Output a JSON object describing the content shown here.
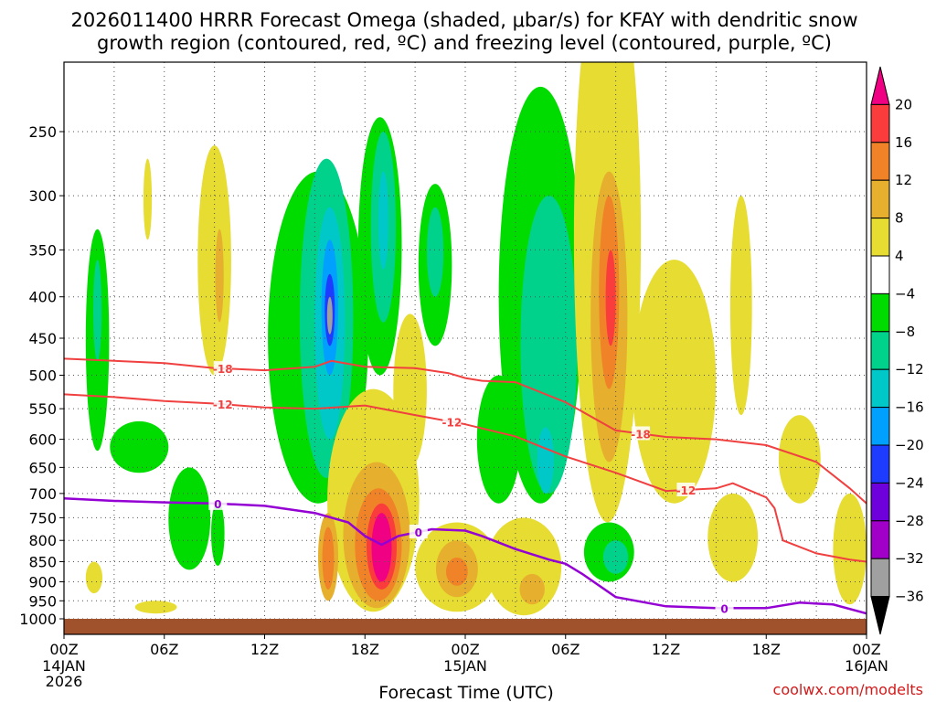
{
  "chart_data": {
    "type": "heatmap",
    "title_line1": "2026011400 HRRR Forecast Omega (shaded, μbar/s) for KFAY with dendritic snow",
    "title_line2": "growth region (contoured, red, ºC) and freezing level (contoured, purple, ºC)",
    "xlabel": "Forecast Time (UTC)",
    "credit": "coolwx.com/modelts",
    "x_range_hours": [
      0,
      48
    ],
    "x_ticks": [
      {
        "hour": 0,
        "label": "00Z",
        "sub1": "14JAN",
        "sub2": "2026"
      },
      {
        "hour": 6,
        "label": "06Z"
      },
      {
        "hour": 12,
        "label": "12Z"
      },
      {
        "hour": 18,
        "label": "18Z"
      },
      {
        "hour": 24,
        "label": "00Z",
        "sub1": "15JAN"
      },
      {
        "hour": 30,
        "label": "06Z"
      },
      {
        "hour": 36,
        "label": "12Z"
      },
      {
        "hour": 42,
        "label": "18Z"
      },
      {
        "hour": 48,
        "label": "00Z",
        "sub1": "16JAN"
      }
    ],
    "y_range_hpa": [
      1000,
      200
    ],
    "y_ticks": [
      250,
      300,
      350,
      400,
      450,
      500,
      550,
      600,
      650,
      700,
      750,
      800,
      850,
      900,
      950,
      1000
    ],
    "colorbar": {
      "levels": [
        -36,
        -32,
        -28,
        -24,
        -20,
        -16,
        -12,
        -8,
        -4,
        4,
        8,
        12,
        16,
        20
      ],
      "colors": [
        "#000000",
        "#a0a0a0",
        "#a000c8",
        "#6e00dc",
        "#1e3cff",
        "#00a0ff",
        "#00c8c8",
        "#00d28c",
        "#00dc00",
        "#ffffff",
        "#e6dc32",
        "#e6af2d",
        "#f08228",
        "#fa3c3c",
        "#f00082"
      ]
    },
    "snow_growth_contours": [
      {
        "label": "-18",
        "color": "#f04040",
        "points": [
          [
            0,
            477
          ],
          [
            3,
            480
          ],
          [
            6,
            483
          ],
          [
            9,
            490
          ],
          [
            12,
            493
          ],
          [
            15,
            488
          ],
          [
            16,
            480
          ],
          [
            18,
            488
          ],
          [
            21,
            490
          ],
          [
            23,
            497
          ],
          [
            24,
            504
          ],
          [
            25,
            508
          ],
          [
            27,
            510
          ],
          [
            30,
            540
          ],
          [
            33,
            585
          ],
          [
            36,
            596
          ],
          [
            39,
            600
          ],
          [
            42,
            610
          ],
          [
            45,
            640
          ],
          [
            47,
            690
          ],
          [
            48,
            720
          ]
        ]
      },
      {
        "label": "-12",
        "color": "#f04040",
        "points": [
          [
            0,
            528
          ],
          [
            3,
            532
          ],
          [
            6,
            538
          ],
          [
            9,
            542
          ],
          [
            12,
            548
          ],
          [
            15,
            550
          ],
          [
            18,
            545
          ],
          [
            21,
            560
          ],
          [
            24,
            575
          ],
          [
            27,
            595
          ],
          [
            30,
            630
          ],
          [
            33,
            660
          ],
          [
            36,
            695
          ],
          [
            39,
            690
          ],
          [
            40,
            680
          ],
          [
            42,
            708
          ],
          [
            42.5,
            730
          ],
          [
            43,
            800
          ],
          [
            45,
            830
          ],
          [
            47,
            845
          ],
          [
            48,
            850
          ]
        ]
      }
    ],
    "freezing_level_contour": {
      "label": "0",
      "color": "#9400d3",
      "points": [
        [
          0,
          710
        ],
        [
          3,
          715
        ],
        [
          6,
          718
        ],
        [
          9,
          720
        ],
        [
          12,
          725
        ],
        [
          15,
          740
        ],
        [
          17,
          760
        ],
        [
          18,
          790
        ],
        [
          19,
          810
        ],
        [
          20,
          790
        ],
        [
          22,
          775
        ],
        [
          24,
          778
        ],
        [
          25,
          790
        ],
        [
          27,
          820
        ],
        [
          29,
          845
        ],
        [
          30,
          855
        ],
        [
          31,
          880
        ],
        [
          33,
          940
        ],
        [
          36,
          965
        ],
        [
          39,
          970
        ],
        [
          42,
          970
        ],
        [
          44,
          955
        ],
        [
          46,
          960
        ],
        [
          48,
          985
        ]
      ]
    },
    "omega_regions": [
      {
        "value": -8,
        "hour": 2,
        "p_top": 330,
        "p_bot": 620,
        "w": 1.4
      },
      {
        "value": -12,
        "hour": 2,
        "p_top": 360,
        "p_bot": 480,
        "w": 0.5
      },
      {
        "value": -8,
        "hour": 4.5,
        "p_top": 570,
        "p_bot": 660,
        "w": 3.5
      },
      {
        "value": -8,
        "hour": 7.5,
        "p_top": 650,
        "p_bot": 870,
        "w": 2.5
      },
      {
        "value": -8,
        "hour": 9.2,
        "p_top": 715,
        "p_bot": 860,
        "w": 0.8
      },
      {
        "value": -8,
        "hour": 15.2,
        "p_top": 280,
        "p_bot": 720,
        "w": 6.0
      },
      {
        "value": -12,
        "hour": 15.7,
        "p_top": 270,
        "p_bot": 670,
        "w": 3.2
      },
      {
        "value": -16,
        "hour": 15.9,
        "p_top": 310,
        "p_bot": 600,
        "w": 1.8
      },
      {
        "value": -20,
        "hour": 15.9,
        "p_top": 340,
        "p_bot": 500,
        "w": 1.0
      },
      {
        "value": -24,
        "hour": 15.9,
        "p_top": 375,
        "p_bot": 460,
        "w": 0.6
      },
      {
        "value": -36,
        "hour": 15.9,
        "p_top": 400,
        "p_bot": 445,
        "w": 0.2
      },
      {
        "value": -8,
        "hour": 18.9,
        "p_top": 240,
        "p_bot": 500,
        "w": 2.6
      },
      {
        "value": -12,
        "hour": 19.1,
        "p_top": 250,
        "p_bot": 430,
        "w": 1.5
      },
      {
        "value": -16,
        "hour": 19.1,
        "p_top": 280,
        "p_bot": 370,
        "w": 0.6
      },
      {
        "value": -8,
        "hour": 22.2,
        "p_top": 290,
        "p_bot": 460,
        "w": 2.0
      },
      {
        "value": -12,
        "hour": 22.2,
        "p_top": 310,
        "p_bot": 400,
        "w": 1.0
      },
      {
        "value": -8,
        "hour": 26.0,
        "p_top": 500,
        "p_bot": 720,
        "w": 2.6
      },
      {
        "value": -8,
        "hour": 28.5,
        "p_top": 220,
        "p_bot": 720,
        "w": 5.0
      },
      {
        "value": -12,
        "hour": 29.0,
        "p_top": 300,
        "p_bot": 700,
        "w": 3.4
      },
      {
        "value": -16,
        "hour": 28.8,
        "p_top": 580,
        "p_bot": 700,
        "w": 1.0
      },
      {
        "value": -8,
        "hour": 32.6,
        "p_top": 760,
        "p_bot": 900,
        "w": 3.0
      },
      {
        "value": -12,
        "hour": 33.0,
        "p_top": 800,
        "p_bot": 880,
        "w": 1.5
      },
      {
        "value": 4,
        "hour": 9.0,
        "p_top": 260,
        "p_bot": 500,
        "w": 2.0
      },
      {
        "value": 8,
        "hour": 9.3,
        "p_top": 330,
        "p_bot": 430,
        "w": 0.5
      },
      {
        "value": 4,
        "hour": 5.0,
        "p_top": 270,
        "p_bot": 340,
        "w": 0.5
      },
      {
        "value": 4,
        "hour": 1.8,
        "p_top": 850,
        "p_bot": 930,
        "w": 1.0
      },
      {
        "value": 4,
        "hour": 18.5,
        "p_top": 520,
        "p_bot": 980,
        "w": 5.5
      },
      {
        "value": 8,
        "hour": 18.7,
        "p_top": 640,
        "p_bot": 970,
        "w": 4.0
      },
      {
        "value": 12,
        "hour": 18.8,
        "p_top": 690,
        "p_bot": 950,
        "w": 2.8
      },
      {
        "value": 16,
        "hour": 19.0,
        "p_top": 720,
        "p_bot": 920,
        "w": 1.8
      },
      {
        "value": 20,
        "hour": 19.0,
        "p_top": 740,
        "p_bot": 900,
        "w": 1.2
      },
      {
        "value": 8,
        "hour": 15.8,
        "p_top": 740,
        "p_bot": 950,
        "w": 1.2
      },
      {
        "value": 12,
        "hour": 15.8,
        "p_top": 770,
        "p_bot": 920,
        "w": 0.7
      },
      {
        "value": 4,
        "hour": 20.7,
        "p_top": 420,
        "p_bot": 650,
        "w": 2.0
      },
      {
        "value": 4,
        "hour": 23.5,
        "p_top": 760,
        "p_bot": 980,
        "w": 5.0
      },
      {
        "value": 8,
        "hour": 23.5,
        "p_top": 800,
        "p_bot": 940,
        "w": 2.5
      },
      {
        "value": 12,
        "hour": 23.5,
        "p_top": 840,
        "p_bot": 910,
        "w": 1.3
      },
      {
        "value": 4,
        "hour": 27.5,
        "p_top": 750,
        "p_bot": 990,
        "w": 4.5
      },
      {
        "value": 8,
        "hour": 28.0,
        "p_top": 880,
        "p_bot": 960,
        "w": 1.5
      },
      {
        "value": 4,
        "hour": 32.5,
        "p_top": 150,
        "p_bot": 760,
        "w": 4.0
      },
      {
        "value": 8,
        "hour": 32.6,
        "p_top": 280,
        "p_bot": 640,
        "w": 2.2
      },
      {
        "value": 12,
        "hour": 32.6,
        "p_top": 300,
        "p_bot": 520,
        "w": 1.2
      },
      {
        "value": 16,
        "hour": 32.7,
        "p_top": 350,
        "p_bot": 460,
        "w": 0.6
      },
      {
        "value": 4,
        "hour": 36.5,
        "p_top": 360,
        "p_bot": 720,
        "w": 5.0
      },
      {
        "value": 4,
        "hour": 40.5,
        "p_top": 300,
        "p_bot": 560,
        "w": 1.3
      },
      {
        "value": 4,
        "hour": 44.0,
        "p_top": 560,
        "p_bot": 720,
        "w": 2.5
      },
      {
        "value": 4,
        "hour": 40.0,
        "p_top": 700,
        "p_bot": 900,
        "w": 3.0
      },
      {
        "value": 4,
        "hour": 47.0,
        "p_top": 700,
        "p_bot": 960,
        "w": 2.0
      },
      {
        "value": 4,
        "hour": 5.5,
        "p_top": 950,
        "p_bot": 985,
        "w": 2.5
      }
    ]
  }
}
